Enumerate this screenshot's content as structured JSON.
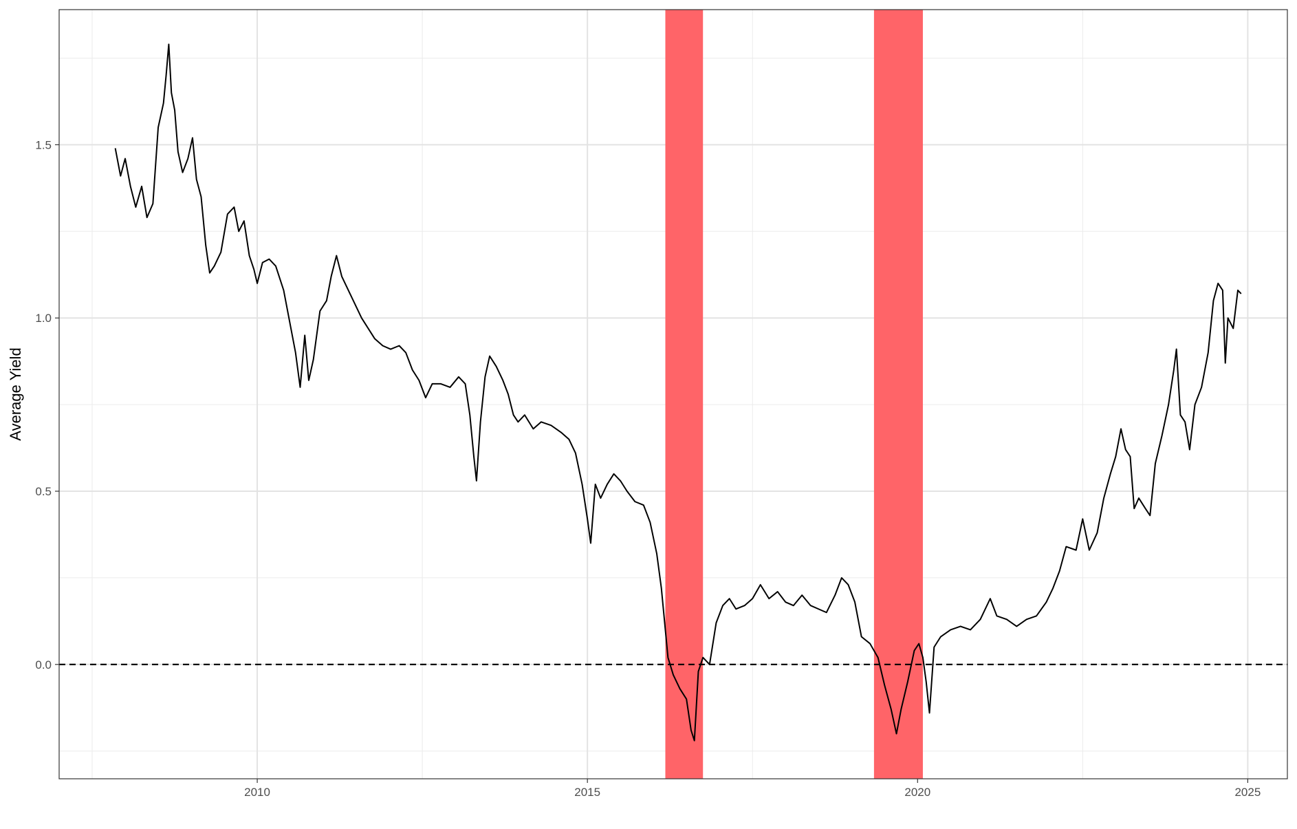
{
  "chart_data": {
    "type": "line",
    "title": "",
    "xlabel": "",
    "ylabel": "Average Yield",
    "xlim": [
      2007.0,
      2025.6
    ],
    "ylim": [
      -0.33,
      1.89
    ],
    "x_ticks": [
      2010,
      2015,
      2020,
      2025
    ],
    "x_tick_labels": [
      "2010",
      "2015",
      "2020",
      "2025"
    ],
    "y_ticks": [
      0.0,
      0.5,
      1.0,
      1.5
    ],
    "y_tick_labels": [
      "0.0",
      "0.5",
      "1.0",
      "1.5"
    ],
    "grid": true,
    "reference_line": {
      "y": 0.0,
      "style": "dashed",
      "color": "#000000"
    },
    "shaded_periods": [
      {
        "start": 2016.18,
        "end": 2016.75,
        "color": "#ff6468"
      },
      {
        "start": 2019.34,
        "end": 2020.08,
        "color": "#ff6468"
      }
    ],
    "series": [
      {
        "color": "#000000",
        "points": [
          [
            2007.85,
            1.49
          ],
          [
            2007.93,
            1.41
          ],
          [
            2008.0,
            1.46
          ],
          [
            2008.08,
            1.38
          ],
          [
            2008.16,
            1.32
          ],
          [
            2008.25,
            1.38
          ],
          [
            2008.33,
            1.29
          ],
          [
            2008.42,
            1.33
          ],
          [
            2008.5,
            1.55
          ],
          [
            2008.58,
            1.62
          ],
          [
            2008.62,
            1.7
          ],
          [
            2008.66,
            1.79
          ],
          [
            2008.7,
            1.65
          ],
          [
            2008.75,
            1.6
          ],
          [
            2008.8,
            1.48
          ],
          [
            2008.87,
            1.42
          ],
          [
            2008.95,
            1.46
          ],
          [
            2009.02,
            1.52
          ],
          [
            2009.08,
            1.4
          ],
          [
            2009.15,
            1.35
          ],
          [
            2009.22,
            1.21
          ],
          [
            2009.28,
            1.13
          ],
          [
            2009.35,
            1.15
          ],
          [
            2009.45,
            1.19
          ],
          [
            2009.55,
            1.3
          ],
          [
            2009.65,
            1.32
          ],
          [
            2009.72,
            1.25
          ],
          [
            2009.8,
            1.28
          ],
          [
            2009.88,
            1.18
          ],
          [
            2009.95,
            1.14
          ],
          [
            2010.0,
            1.1
          ],
          [
            2010.08,
            1.16
          ],
          [
            2010.18,
            1.17
          ],
          [
            2010.28,
            1.15
          ],
          [
            2010.4,
            1.08
          ],
          [
            2010.5,
            0.98
          ],
          [
            2010.58,
            0.9
          ],
          [
            2010.65,
            0.8
          ],
          [
            2010.72,
            0.95
          ],
          [
            2010.78,
            0.82
          ],
          [
            2010.85,
            0.88
          ],
          [
            2010.95,
            1.02
          ],
          [
            2011.05,
            1.05
          ],
          [
            2011.12,
            1.12
          ],
          [
            2011.2,
            1.18
          ],
          [
            2011.28,
            1.12
          ],
          [
            2011.38,
            1.08
          ],
          [
            2011.48,
            1.04
          ],
          [
            2011.58,
            1.0
          ],
          [
            2011.68,
            0.97
          ],
          [
            2011.78,
            0.94
          ],
          [
            2011.9,
            0.92
          ],
          [
            2012.02,
            0.91
          ],
          [
            2012.15,
            0.92
          ],
          [
            2012.25,
            0.9
          ],
          [
            2012.35,
            0.85
          ],
          [
            2012.45,
            0.82
          ],
          [
            2012.55,
            0.77
          ],
          [
            2012.65,
            0.81
          ],
          [
            2012.78,
            0.81
          ],
          [
            2012.92,
            0.8
          ],
          [
            2013.05,
            0.83
          ],
          [
            2013.15,
            0.81
          ],
          [
            2013.22,
            0.72
          ],
          [
            2013.28,
            0.6
          ],
          [
            2013.32,
            0.53
          ],
          [
            2013.38,
            0.7
          ],
          [
            2013.45,
            0.83
          ],
          [
            2013.52,
            0.89
          ],
          [
            2013.62,
            0.86
          ],
          [
            2013.72,
            0.82
          ],
          [
            2013.8,
            0.78
          ],
          [
            2013.88,
            0.72
          ],
          [
            2013.95,
            0.7
          ],
          [
            2014.05,
            0.72
          ],
          [
            2014.18,
            0.68
          ],
          [
            2014.3,
            0.7
          ],
          [
            2014.45,
            0.69
          ],
          [
            2014.6,
            0.67
          ],
          [
            2014.72,
            0.65
          ],
          [
            2014.82,
            0.61
          ],
          [
            2014.92,
            0.52
          ],
          [
            2015.0,
            0.42
          ],
          [
            2015.05,
            0.35
          ],
          [
            2015.12,
            0.52
          ],
          [
            2015.2,
            0.48
          ],
          [
            2015.3,
            0.52
          ],
          [
            2015.4,
            0.55
          ],
          [
            2015.5,
            0.53
          ],
          [
            2015.6,
            0.5
          ],
          [
            2015.72,
            0.47
          ],
          [
            2015.85,
            0.46
          ],
          [
            2015.95,
            0.41
          ],
          [
            2016.05,
            0.32
          ],
          [
            2016.12,
            0.22
          ],
          [
            2016.18,
            0.1
          ],
          [
            2016.22,
            0.02
          ],
          [
            2016.3,
            -0.03
          ],
          [
            2016.4,
            -0.07
          ],
          [
            2016.5,
            -0.1
          ],
          [
            2016.57,
            -0.19
          ],
          [
            2016.62,
            -0.22
          ],
          [
            2016.68,
            -0.02
          ],
          [
            2016.75,
            0.02
          ],
          [
            2016.85,
            0.0
          ],
          [
            2016.95,
            0.12
          ],
          [
            2017.05,
            0.17
          ],
          [
            2017.15,
            0.19
          ],
          [
            2017.25,
            0.16
          ],
          [
            2017.38,
            0.17
          ],
          [
            2017.5,
            0.19
          ],
          [
            2017.62,
            0.23
          ],
          [
            2017.75,
            0.19
          ],
          [
            2017.88,
            0.21
          ],
          [
            2018.0,
            0.18
          ],
          [
            2018.12,
            0.17
          ],
          [
            2018.25,
            0.2
          ],
          [
            2018.38,
            0.17
          ],
          [
            2018.5,
            0.16
          ],
          [
            2018.62,
            0.15
          ],
          [
            2018.75,
            0.2
          ],
          [
            2018.85,
            0.25
          ],
          [
            2018.95,
            0.23
          ],
          [
            2019.05,
            0.18
          ],
          [
            2019.15,
            0.08
          ],
          [
            2019.28,
            0.06
          ],
          [
            2019.4,
            0.02
          ],
          [
            2019.5,
            -0.06
          ],
          [
            2019.6,
            -0.13
          ],
          [
            2019.68,
            -0.2
          ],
          [
            2019.75,
            -0.13
          ],
          [
            2019.85,
            -0.05
          ],
          [
            2019.95,
            0.04
          ],
          [
            2020.02,
            0.06
          ],
          [
            2020.08,
            0.02
          ],
          [
            2020.13,
            -0.05
          ],
          [
            2020.18,
            -0.14
          ],
          [
            2020.25,
            0.05
          ],
          [
            2020.35,
            0.08
          ],
          [
            2020.5,
            0.1
          ],
          [
            2020.65,
            0.11
          ],
          [
            2020.8,
            0.1
          ],
          [
            2020.95,
            0.13
          ],
          [
            2021.1,
            0.19
          ],
          [
            2021.2,
            0.14
          ],
          [
            2021.35,
            0.13
          ],
          [
            2021.5,
            0.11
          ],
          [
            2021.65,
            0.13
          ],
          [
            2021.8,
            0.14
          ],
          [
            2021.95,
            0.18
          ],
          [
            2022.05,
            0.22
          ],
          [
            2022.15,
            0.27
          ],
          [
            2022.25,
            0.34
          ],
          [
            2022.4,
            0.33
          ],
          [
            2022.5,
            0.42
          ],
          [
            2022.6,
            0.33
          ],
          [
            2022.72,
            0.38
          ],
          [
            2022.82,
            0.48
          ],
          [
            2022.92,
            0.55
          ],
          [
            2023.0,
            0.6
          ],
          [
            2023.08,
            0.68
          ],
          [
            2023.15,
            0.62
          ],
          [
            2023.22,
            0.6
          ],
          [
            2023.28,
            0.45
          ],
          [
            2023.35,
            0.48
          ],
          [
            2023.45,
            0.45
          ],
          [
            2023.52,
            0.43
          ],
          [
            2023.6,
            0.58
          ],
          [
            2023.7,
            0.66
          ],
          [
            2023.8,
            0.75
          ],
          [
            2023.88,
            0.85
          ],
          [
            2023.92,
            0.91
          ],
          [
            2023.98,
            0.72
          ],
          [
            2024.05,
            0.7
          ],
          [
            2024.12,
            0.62
          ],
          [
            2024.2,
            0.75
          ],
          [
            2024.3,
            0.8
          ],
          [
            2024.4,
            0.9
          ],
          [
            2024.48,
            1.05
          ],
          [
            2024.55,
            1.1
          ],
          [
            2024.62,
            1.08
          ],
          [
            2024.66,
            0.87
          ],
          [
            2024.7,
            1.0
          ],
          [
            2024.78,
            0.97
          ],
          [
            2024.85,
            1.08
          ],
          [
            2024.9,
            1.07
          ]
        ]
      }
    ]
  }
}
